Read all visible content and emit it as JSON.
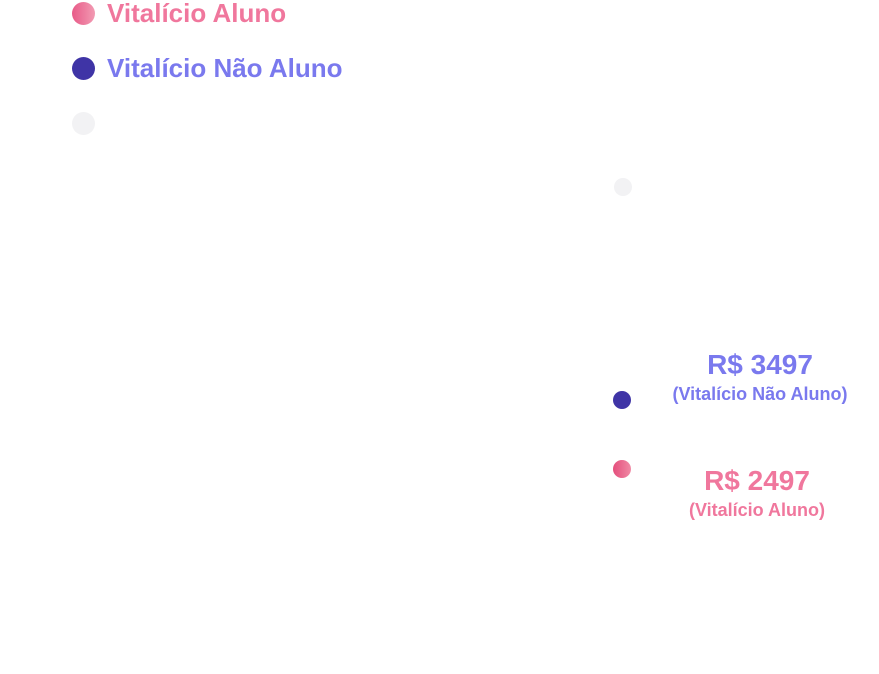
{
  "legend": {
    "items": [
      {
        "label": "Vitalício Aluno",
        "color": "#f0779d"
      },
      {
        "label": "Vitalício Não Aluno",
        "color": "#7a79ee"
      }
    ]
  },
  "chart_data": {
    "type": "bar",
    "orientation": "horizontal",
    "grid": false,
    "legend_position": "top-left",
    "series": [
      {
        "name": "Vitalício Não Aluno",
        "value": 3497,
        "value_label": "R$ 3497",
        "category_label": "(Vitalício Não Aluno)",
        "bar_color": "#7a5cc9",
        "marker_color": "#3f34a6"
      },
      {
        "name": "Vitalício Aluno",
        "value": 2497,
        "value_label": "R$ 2497",
        "category_label": "(Vitalício Aluno)",
        "bar_color": "#d04a80",
        "marker_color": "#e8577f"
      }
    ]
  }
}
